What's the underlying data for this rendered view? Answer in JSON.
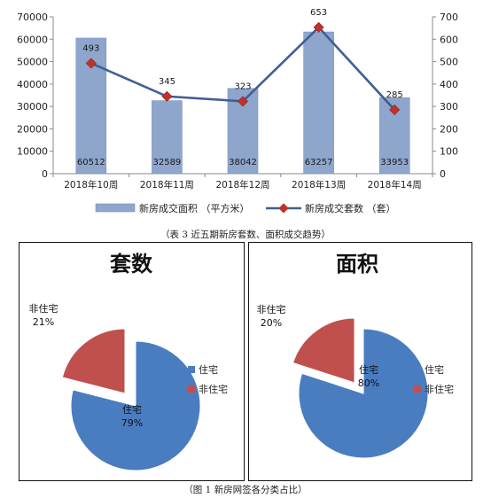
{
  "colors": {
    "bar": "#8EA6CC",
    "bar_edge": "#7A93BC",
    "line": "#3F5F94",
    "marker": "#C0312B",
    "pie_blue": "#4A7CC0",
    "pie_red": "#C0504D",
    "axis": "#8a8a8a"
  },
  "chart_data": [
    {
      "type": "bar+line",
      "categories": [
        "2018年10周",
        "2018年11周",
        "2018年12周",
        "2018年13周",
        "2018年14周"
      ],
      "series": [
        {
          "name": "新房成交面积 （平方米）",
          "kind": "bar",
          "axis": "left",
          "values": [
            60512,
            32589,
            38042,
            63257,
            33953
          ]
        },
        {
          "name": "新房成交套数 （套）",
          "kind": "line",
          "axis": "right",
          "values": [
            493,
            345,
            323,
            653,
            285
          ]
        }
      ],
      "ylim_left": [
        0,
        70000
      ],
      "ylim_right": [
        0,
        700
      ],
      "yticks_left": [
        "0",
        "10000",
        "20000",
        "30000",
        "40000",
        "50000",
        "60000",
        "70000"
      ],
      "yticks_right": [
        "0",
        "100",
        "200",
        "300",
        "400",
        "500",
        "600",
        "700"
      ],
      "legend": "bottom",
      "grid": false
    },
    {
      "type": "pie",
      "title": "套数",
      "slices": [
        {
          "label": "住宅",
          "percent": 79
        },
        {
          "label": "非住宅",
          "percent": 21
        }
      ],
      "legend": "right"
    },
    {
      "type": "pie",
      "title": "面积",
      "slices": [
        {
          "label": "住宅",
          "percent": 80
        },
        {
          "label": "非住宅",
          "percent": 20
        }
      ],
      "legend": "right"
    }
  ],
  "captions": {
    "table3": "（表 3 近五期新房套数、面积成交趋势）",
    "figure1": "（图 1 新房网签各分类占比）"
  }
}
